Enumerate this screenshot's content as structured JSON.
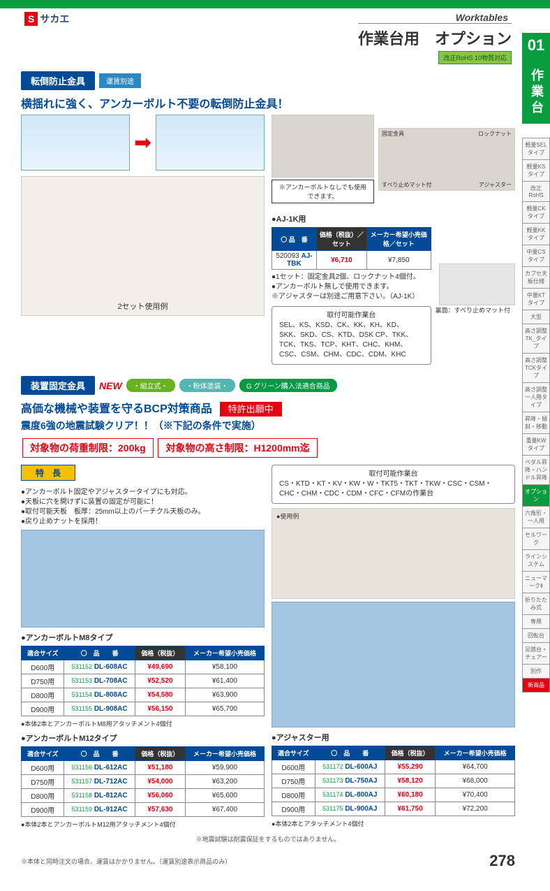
{
  "header": {
    "logo_s": "S",
    "logo_text": "サカエ",
    "worktables": "Worktables",
    "page_title": "作業台用　オプション",
    "rohs": "改正RoHS 10物質対応"
  },
  "side": {
    "num": "01",
    "label": "作業台",
    "items": [
      "軽量SELタイプ",
      "軽量KSタイプ",
      "改正RoHS",
      "軽量CKタイプ",
      "軽量KKタイプ",
      "中量CSタイプ",
      "カブセ天板仕様",
      "中量KTタイプ",
      "大型",
      "高さ調整TK_タイプ",
      "高さ調整TCKタイプ",
      "高さ調整一人用タイプ",
      "昇降・傾斜・移動",
      "重量KWタイプ",
      "ペダル昇降・ハンドル昇降",
      "オプション",
      "六角形・一人用",
      "セルワーク",
      "ラインシステム",
      "ニューマークⅡ",
      "折りたたみ式",
      "専用",
      "回転台",
      "足踏台・チェアー",
      "別作",
      "新商品"
    ],
    "active_index": 15,
    "new_index": 25
  },
  "section1": {
    "label": "転倒防止金具",
    "sublabel": "運賃別途",
    "headline": "横揺れに強く、アンカーボルト不要の転倒防止金具！",
    "anchor_note": "※アンカーボルトなしでも使用できます。",
    "photo_caption": "2セット使用例",
    "illus_labels": {
      "fixed": "固定金具",
      "lock": "ロックナット",
      "mat": "すべり止めマット付",
      "adj": "アジャスター",
      "back": "裏面：すべり止めマット付"
    },
    "title_above_table": "●AJ-1K用",
    "table_headers": [
      "〇 品　番",
      "価格（税抜）／セット",
      "メーカー希望小売価格／セット"
    ],
    "row": {
      "sku": "520093",
      "code": "AJ-TBK",
      "price": "¥6,710",
      "msrp": "¥7,850"
    },
    "notes": [
      "●1セット：固定金具2個、ロックナット4個付。",
      "●アンカーボルト無しで使用できます。",
      "※アジャスターは別途ご用意下さい。（AJ-1K）"
    ],
    "compat_title": "取付可能作業台",
    "compat_body": "SEL、KS、KSD、CK、KK、KH、KD、SKK、SKD、CS、KTD、DSK CP、TKK、TCK、TKS、TCP、KHT、CHC、KHM、CSC、CSM、CHM、CDC、CDM、KHC"
  },
  "section2": {
    "label": "装置固定金具",
    "new": "NEW",
    "pill1": "・組立式・",
    "pill2": "・粉体塗装・",
    "pill3": "G グリーン購入法適合商品",
    "headline1": "高価な機械や装置を守るBCP対策商品",
    "patent": "特許出願中",
    "headline2": "震度6強の地震試験クリア！！（※下記の条件で実施）",
    "limit1": "対象物の荷重制限：200kg",
    "limit2": "対象物の高さ制限：H1200mm迄",
    "feature_label": "特　長",
    "features": [
      "●アンカーボルト固定やアジャスタータイプにも対応。",
      "●天板に穴を開けずに装置の固定が可能に！",
      "●取付可能天板　板厚：25mm以上のパーチクル天板のみ。",
      "●戻り止めナットを採用！"
    ],
    "compat_title": "取付可能作業台",
    "compat_body": "CS・KTD・KT・KV・KW・W・TKT5・TKT・TKW・CSC・CSM・CHC・CHM・CDC・CDM・CFC・CFMの作業台",
    "usage_label": "●使用例"
  },
  "tables": {
    "m8": {
      "title": "●アンカーボルトM8タイプ",
      "headers": [
        "適合サイズ",
        "〇　品　　番",
        "価格（税抜）",
        "メーカー希望小売価格"
      ],
      "rows": [
        {
          "size": "D600用",
          "sku": "531152",
          "code": "DL-608AC",
          "price": "¥49,690",
          "msrp": "¥58,100"
        },
        {
          "size": "D750用",
          "sku": "531153",
          "code": "DL-708AC",
          "price": "¥52,520",
          "msrp": "¥61,400"
        },
        {
          "size": "D800用",
          "sku": "531154",
          "code": "DL-808AC",
          "price": "¥54,580",
          "msrp": "¥63,900"
        },
        {
          "size": "D900用",
          "sku": "531155",
          "code": "DL-908AC",
          "price": "¥56,150",
          "msrp": "¥65,700"
        }
      ],
      "note": "●本体2本とアンカーボルトM8用アタッチメント4個付"
    },
    "m12": {
      "title": "●アンカーボルトM12タイプ",
      "rows": [
        {
          "size": "D600用",
          "sku": "531156",
          "code": "DL-612AC",
          "price": "¥51,180",
          "msrp": "¥59,900"
        },
        {
          "size": "D750用",
          "sku": "531157",
          "code": "DL-712AC",
          "price": "¥54,000",
          "msrp": "¥63,200"
        },
        {
          "size": "D800用",
          "sku": "531158",
          "code": "DL-812AC",
          "price": "¥56,060",
          "msrp": "¥65,600"
        },
        {
          "size": "D900用",
          "sku": "531159",
          "code": "DL-912AC",
          "price": "¥57,630",
          "msrp": "¥67,400"
        }
      ],
      "note": "●本体2本とアンカーボルトM12用アタッチメント4個付"
    },
    "adj": {
      "title": "●アジャスター用",
      "rows": [
        {
          "size": "D600用",
          "sku": "531172",
          "code": "DL-600AJ",
          "price": "¥55,290",
          "msrp": "¥64,700"
        },
        {
          "size": "D750用",
          "sku": "531173",
          "code": "DL-750AJ",
          "price": "¥58,120",
          "msrp": "¥68,000"
        },
        {
          "size": "D800用",
          "sku": "531174",
          "code": "DL-800AJ",
          "price": "¥60,180",
          "msrp": "¥70,400"
        },
        {
          "size": "D900用",
          "sku": "531175",
          "code": "DL-900AJ",
          "price": "¥61,750",
          "msrp": "¥72,200"
        }
      ],
      "note": "●本体2本とアタッチメント4個付"
    }
  },
  "footer": {
    "disclaimer": "※地震試験は耐震保証をするものではありません。",
    "order_note": "※本体と同時注文の場合、運賃はかかりません。（運賃別途表示商品のみ）",
    "page": "278"
  }
}
